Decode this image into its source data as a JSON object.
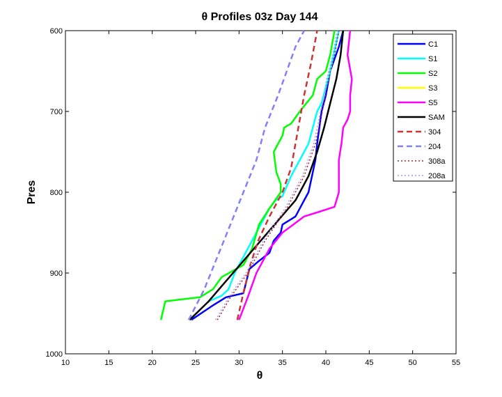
{
  "chart_data": {
    "type": "line",
    "title": "θ Profiles 03z Day 144",
    "xlabel": "θ",
    "ylabel": "Pres",
    "xlim": [
      10,
      55
    ],
    "ylim": [
      600,
      1000
    ],
    "y_reversed": true,
    "grid": false,
    "legend_position": "top-right",
    "x_ticks": [
      "10",
      "15",
      "20",
      "25",
      "30",
      "35",
      "40",
      "45",
      "50",
      "55"
    ],
    "y_ticks": [
      "600",
      "700",
      "800",
      "900",
      "1000"
    ],
    "series": [
      {
        "name": "C1",
        "color": "#0000ff",
        "dash": "solid",
        "x": [
          24.5,
          27,
          28.5,
          30.5,
          31.2,
          32.3,
          33.5,
          34.0,
          34.8,
          35.0,
          36.5,
          37.0,
          37.5,
          38.0,
          38.4,
          38.8,
          39.0,
          39.5,
          40.0,
          40.5,
          41.5,
          42.0
        ],
        "y": [
          958,
          940,
          930,
          925,
          895,
          885,
          875,
          860,
          850,
          840,
          830,
          820,
          810,
          800,
          780,
          760,
          740,
          700,
          680,
          650,
          620,
          600
        ]
      },
      {
        "name": "S1",
        "color": "#00ffff",
        "dash": "solid",
        "x": [
          26.5,
          28,
          28.8,
          29.5,
          30.5,
          31.5,
          32.5,
          33.5,
          34.2,
          35.0,
          36.0,
          37.0,
          38.0,
          38.5,
          39.0,
          39.5,
          40.0,
          40.5,
          41.5
        ],
        "y": [
          935,
          928,
          920,
          900,
          880,
          860,
          840,
          820,
          810,
          805,
          780,
          760,
          740,
          720,
          700,
          690,
          670,
          650,
          600
        ]
      },
      {
        "name": "S2",
        "color": "#00ff00",
        "dash": "solid",
        "x": [
          21,
          21.5,
          25.5,
          27,
          28,
          30.5,
          31.5,
          32.3,
          33.5,
          34.8,
          34.8,
          34.3,
          34.0,
          35,
          35.2,
          36.0,
          37.0,
          38.5,
          39.0,
          40.0,
          40.5,
          41.0
        ],
        "y": [
          958,
          935,
          930,
          920,
          905,
          890,
          870,
          840,
          820,
          800,
          790,
          775,
          750,
          730,
          720,
          715,
          700,
          680,
          660,
          650,
          630,
          600
        ]
      },
      {
        "name": "S3",
        "color": "#ffff00",
        "dash": "solid",
        "x": [],
        "y": []
      },
      {
        "name": "S5",
        "color": "#ff00ff",
        "dash": "solid",
        "x": [
          30.0,
          31.0,
          32.0,
          33.5,
          35.0,
          36.5,
          37.5,
          39.0,
          41.0,
          41.5,
          41.5,
          41.5,
          41.8,
          42.0,
          42.5,
          42.8,
          42.8,
          43.0,
          42.5,
          42.8
        ],
        "y": [
          958,
          930,
          900,
          870,
          850,
          838,
          830,
          825,
          818,
          800,
          780,
          760,
          740,
          720,
          710,
          700,
          680,
          660,
          630,
          600
        ]
      },
      {
        "name": "SAM",
        "color": "#000000",
        "dash": "solid",
        "x": [
          24.3,
          26.5,
          28.5,
          30.5,
          32.5,
          34.5,
          36.5,
          38.0,
          39.0,
          39.8,
          40.5,
          41.2,
          41.7,
          42.0
        ],
        "y": [
          958,
          935,
          910,
          885,
          860,
          835,
          810,
          780,
          750,
          720,
          690,
          660,
          630,
          600
        ]
      },
      {
        "name": "304",
        "color": "#cc3333",
        "dash": "dashed",
        "x": [
          29.8,
          30.6,
          31.3,
          32.2,
          33.5,
          35.0,
          36.0,
          36.5,
          37.0,
          37.5,
          38.3,
          39.0
        ],
        "y": [
          958,
          920,
          890,
          860,
          830,
          800,
          770,
          740,
          710,
          680,
          640,
          600
        ]
      },
      {
        "name": "204",
        "color": "#8080ff",
        "dash": "dashed",
        "x": [
          24.2,
          26.0,
          27.5,
          29.0,
          30.5,
          32.0,
          33.0,
          34.5,
          35.5,
          36.5,
          37.5
        ],
        "y": [
          958,
          920,
          880,
          840,
          800,
          760,
          720,
          680,
          650,
          620,
          600
        ]
      },
      {
        "name": "308a",
        "color": "#aa2222",
        "dash": "dotted",
        "x": [
          27.5,
          29.0,
          31.0,
          33.0,
          35.5,
          37.5,
          38.8,
          39.6,
          40.3,
          41.0,
          41.5
        ],
        "y": [
          958,
          930,
          900,
          860,
          820,
          780,
          740,
          700,
          660,
          630,
          600
        ]
      },
      {
        "name": "208a",
        "color": "#9999ff",
        "dash": "dotted",
        "x": [
          27.3,
          28.8,
          30.8,
          32.8,
          35.3,
          37.3,
          38.6,
          39.4,
          40.1,
          40.8,
          41.3
        ],
        "y": [
          958,
          930,
          900,
          860,
          820,
          780,
          740,
          700,
          660,
          630,
          600
        ]
      }
    ]
  }
}
